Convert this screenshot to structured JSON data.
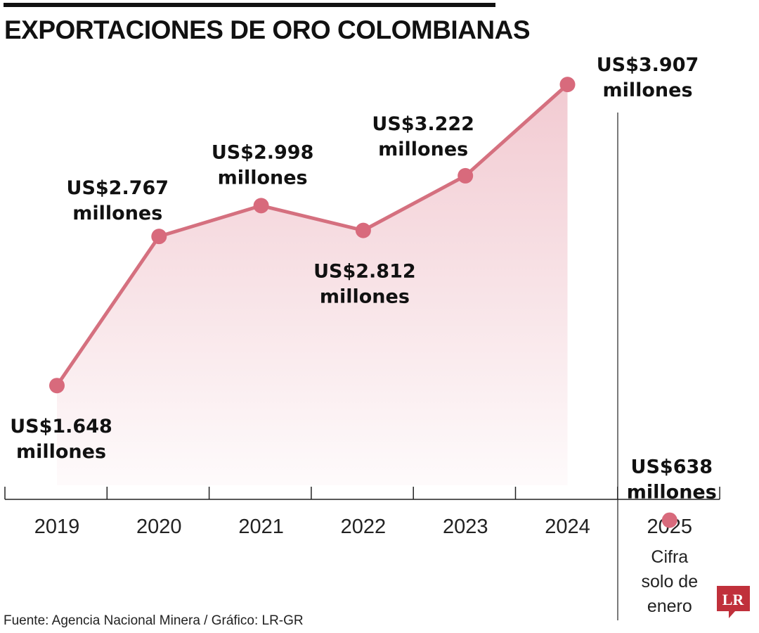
{
  "title": "EXPORTACIONES DE ORO COLOMBIANAS",
  "source": "Fuente: Agencia Nacional Minera / Gráfico: LR-GR",
  "logo_text": "LR",
  "colors": {
    "line": "#d5707f",
    "point": "#d86a7c",
    "fill_top": "#e9a7b3",
    "axis": "#222222",
    "logo": "#c0303b"
  },
  "chart_data": {
    "type": "area",
    "unit": "millones",
    "ylim": [
      0,
      4000
    ],
    "categories": [
      "2019",
      "2020",
      "2021",
      "2022",
      "2023",
      "2024",
      "2025"
    ],
    "annotations": [
      "",
      "",
      "",
      "",
      "",
      "",
      "Cifra solo de enero"
    ],
    "series": [
      {
        "values": [
          1648,
          2767,
          2998,
          2812,
          3222,
          3907,
          638
        ],
        "labels": [
          "US$1.648",
          "US$2.767",
          "US$2.998",
          "US$2.812",
          "US$3.222",
          "US$3.907",
          "US$638"
        ]
      }
    ]
  }
}
